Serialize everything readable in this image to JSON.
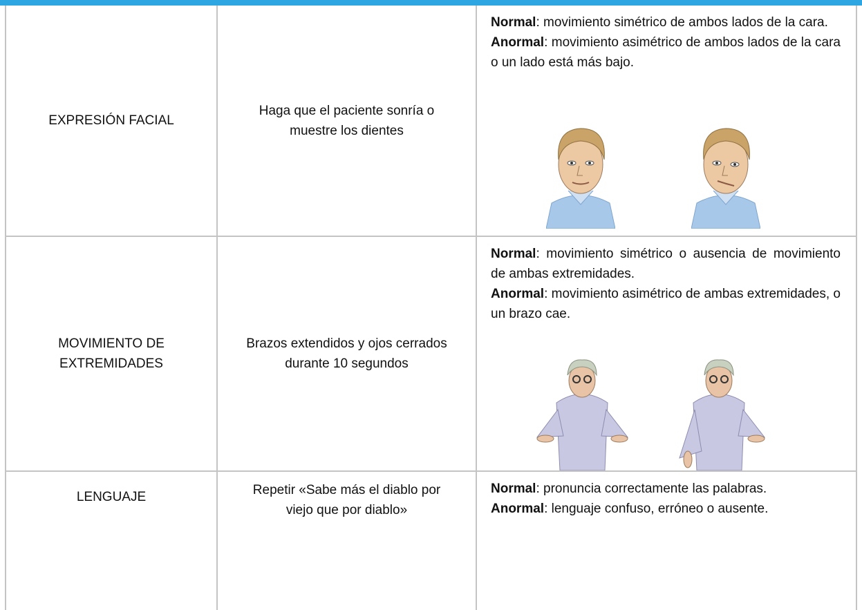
{
  "table": {
    "rows": [
      [
        "EXPRESIÓN FACIAL",
        "Haga que el paciente sonría o muestre los dientes",
        {
          "normal_label": "Normal",
          "normal_text": ": movimiento simétrico de ambos lados de la cara.",
          "abnormal_label": "Anormal",
          "abnormal_text": ": movimiento asimétrico de ambos lados de la cara o un lado está más bajo."
        }
      ],
      [
        "MOVIMIENTO DE EXTREMIDADES",
        "Brazos extendidos y ojos cerrados durante 10 segundos",
        {
          "normal_label": "Normal",
          "normal_text": ": movimiento simétrico o ausencia de movimiento de ambas extremidades.",
          "abnormal_label": "Anormal",
          "abnormal_text": ": movimiento asimétrico de ambas extremidades, o un brazo cae."
        }
      ],
      [
        "LENGUAJE",
        "Repetir «Sabe más el diablo por viejo que por diablo»",
        {
          "normal_label": "Normal",
          "normal_text": ": pronuncia correctamente las palabras.",
          "abnormal_label": "Anormal",
          "abnormal_text": ": lenguaje confuso, erróneo o ausente."
        }
      ]
    ]
  }
}
